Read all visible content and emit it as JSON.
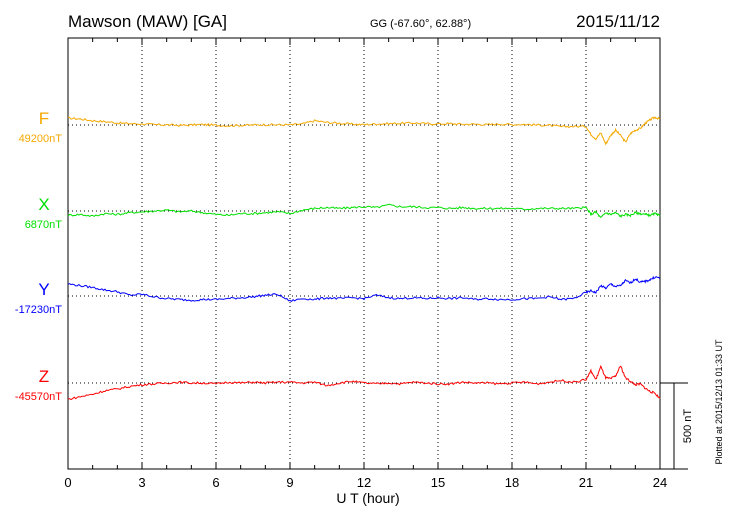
{
  "header": {
    "station": "Mawson (MAW)  [GA]",
    "coords": "GG (-67.60°,  62.88°)",
    "date": "2015/11/12"
  },
  "plotted_note": "Plotted at 2015/12/13 01:33 UT",
  "scale_label": "500 nT",
  "chart_data": {
    "type": "line",
    "title": "Mawson (MAW)  [GA]",
    "xlabel": "U T (hour)",
    "xlim": [
      0,
      24
    ],
    "xticks": [
      0,
      3,
      6,
      9,
      12,
      15,
      18,
      21,
      24
    ],
    "scale_bar_nT": 500,
    "grid": "dotted vertical at every 3 hours; dotted baseline per component",
    "legend": "left, component letter with baseline value",
    "colors": {
      "F": "#f5a800",
      "X": "#00e000",
      "Y": "#0000ff",
      "Z": "#ff0000"
    },
    "series": [
      {
        "name": "F",
        "baseline_label": "49200nT",
        "baseline_nT": 49200,
        "color": "#f5a800",
        "points": [
          [
            0,
            40
          ],
          [
            0.5,
            35
          ],
          [
            1,
            25
          ],
          [
            1.5,
            20
          ],
          [
            2,
            12
          ],
          [
            2.5,
            8
          ],
          [
            3,
            6
          ],
          [
            3.5,
            2
          ],
          [
            4,
            1
          ],
          [
            4.5,
            -2
          ],
          [
            5,
            0
          ],
          [
            5.5,
            3
          ],
          [
            6,
            -2
          ],
          [
            6.5,
            -4
          ],
          [
            7,
            -2
          ],
          [
            7.5,
            0
          ],
          [
            8,
            2
          ],
          [
            8.5,
            1
          ],
          [
            9,
            1
          ],
          [
            9.5,
            6
          ],
          [
            10,
            25
          ],
          [
            10.5,
            15
          ],
          [
            11,
            10
          ],
          [
            11.5,
            5
          ],
          [
            12,
            2
          ],
          [
            12.5,
            6
          ],
          [
            13,
            8
          ],
          [
            13.5,
            10
          ],
          [
            14,
            12
          ],
          [
            14.5,
            8
          ],
          [
            15,
            6
          ],
          [
            15.5,
            8
          ],
          [
            16,
            4
          ],
          [
            16.5,
            5
          ],
          [
            17,
            2
          ],
          [
            17.5,
            6
          ],
          [
            18,
            2
          ],
          [
            18.5,
            4
          ],
          [
            19,
            0
          ],
          [
            19.5,
            -2
          ],
          [
            20,
            -10
          ],
          [
            20.5,
            -8
          ],
          [
            21,
            -8
          ],
          [
            21.2,
            -55
          ],
          [
            21.4,
            -80
          ],
          [
            21.6,
            -45
          ],
          [
            21.8,
            -110
          ],
          [
            22,
            -60
          ],
          [
            22.2,
            -30
          ],
          [
            22.4,
            -60
          ],
          [
            22.6,
            -100
          ],
          [
            22.8,
            -50
          ],
          [
            23,
            -30
          ],
          [
            23.2,
            -20
          ],
          [
            23.4,
            10
          ],
          [
            23.6,
            30
          ],
          [
            23.8,
            45
          ],
          [
            24,
            35
          ]
        ]
      },
      {
        "name": "X",
        "baseline_label": "6870nT",
        "baseline_nT": 6870,
        "color": "#00e000",
        "points": [
          [
            0,
            -25
          ],
          [
            0.5,
            -20
          ],
          [
            1,
            -30
          ],
          [
            1.5,
            -15
          ],
          [
            2,
            -20
          ],
          [
            2.5,
            -10
          ],
          [
            3,
            -5
          ],
          [
            3.5,
            0
          ],
          [
            4,
            5
          ],
          [
            4.5,
            -5
          ],
          [
            5,
            0
          ],
          [
            5.5,
            -10
          ],
          [
            6,
            -20
          ],
          [
            6.5,
            -25
          ],
          [
            7,
            -15
          ],
          [
            7.5,
            -15
          ],
          [
            8,
            -10
          ],
          [
            8.5,
            -5
          ],
          [
            9,
            -15
          ],
          [
            9.5,
            5
          ],
          [
            10,
            15
          ],
          [
            10.5,
            20
          ],
          [
            11,
            15
          ],
          [
            11.5,
            20
          ],
          [
            12,
            25
          ],
          [
            12.5,
            20
          ],
          [
            13,
            35
          ],
          [
            13.5,
            25
          ],
          [
            14,
            25
          ],
          [
            14.5,
            20
          ],
          [
            15,
            20
          ],
          [
            15.5,
            15
          ],
          [
            16,
            20
          ],
          [
            16.5,
            15
          ],
          [
            17,
            15
          ],
          [
            17.5,
            15
          ],
          [
            18,
            15
          ],
          [
            18.5,
            10
          ],
          [
            19,
            15
          ],
          [
            19.5,
            15
          ],
          [
            20,
            15
          ],
          [
            20.5,
            15
          ],
          [
            21,
            20
          ],
          [
            21.2,
            -20
          ],
          [
            21.4,
            -5
          ],
          [
            21.6,
            -40
          ],
          [
            21.8,
            -10
          ],
          [
            22,
            -20
          ],
          [
            22.2,
            -10
          ],
          [
            22.4,
            -30
          ],
          [
            22.6,
            -20
          ],
          [
            22.8,
            -25
          ],
          [
            23,
            -10
          ],
          [
            23.2,
            -15
          ],
          [
            23.4,
            -20
          ],
          [
            23.6,
            -25
          ],
          [
            23.8,
            -15
          ],
          [
            24,
            -30
          ]
        ]
      },
      {
        "name": "Y",
        "baseline_label": "-17230nT",
        "baseline_nT": -17230,
        "color": "#0000ff",
        "points": [
          [
            0,
            70
          ],
          [
            0.5,
            60
          ],
          [
            1,
            50
          ],
          [
            1.5,
            35
          ],
          [
            2,
            25
          ],
          [
            2.5,
            5
          ],
          [
            3,
            10
          ],
          [
            3.5,
            -5
          ],
          [
            4,
            -15
          ],
          [
            4.5,
            -20
          ],
          [
            5,
            -25
          ],
          [
            5.5,
            -20
          ],
          [
            6,
            -20
          ],
          [
            6.5,
            -15
          ],
          [
            7,
            -10
          ],
          [
            7.5,
            -5
          ],
          [
            8,
            5
          ],
          [
            8.5,
            10
          ],
          [
            9,
            -30
          ],
          [
            9.5,
            -15
          ],
          [
            10,
            -20
          ],
          [
            10.5,
            -10
          ],
          [
            11,
            -15
          ],
          [
            11.5,
            -10
          ],
          [
            12,
            -15
          ],
          [
            12.5,
            5
          ],
          [
            13,
            -10
          ],
          [
            13.5,
            -15
          ],
          [
            14,
            -10
          ],
          [
            14.5,
            -15
          ],
          [
            15,
            -10
          ],
          [
            15.5,
            -15
          ],
          [
            16,
            -10
          ],
          [
            16.5,
            -20
          ],
          [
            17,
            -15
          ],
          [
            17.5,
            -20
          ],
          [
            18,
            -20
          ],
          [
            18.5,
            -15
          ],
          [
            19,
            -15
          ],
          [
            19.5,
            -5
          ],
          [
            20,
            -20
          ],
          [
            20.5,
            -15
          ],
          [
            21,
            20
          ],
          [
            21.2,
            30
          ],
          [
            21.4,
            20
          ],
          [
            21.6,
            60
          ],
          [
            21.8,
            45
          ],
          [
            22,
            70
          ],
          [
            22.2,
            55
          ],
          [
            22.4,
            60
          ],
          [
            22.6,
            90
          ],
          [
            22.8,
            75
          ],
          [
            23,
            100
          ],
          [
            23.2,
            80
          ],
          [
            23.4,
            85
          ],
          [
            23.6,
            95
          ],
          [
            23.8,
            110
          ],
          [
            24,
            105
          ]
        ]
      },
      {
        "name": "Z",
        "baseline_label": "-45570nT",
        "baseline_nT": -45570,
        "color": "#ff0000",
        "points": [
          [
            0,
            -95
          ],
          [
            0.5,
            -80
          ],
          [
            1,
            -65
          ],
          [
            1.5,
            -45
          ],
          [
            2,
            -35
          ],
          [
            2.5,
            -20
          ],
          [
            3,
            -10
          ],
          [
            3.5,
            -5
          ],
          [
            4,
            0
          ],
          [
            4.5,
            5
          ],
          [
            5,
            0
          ],
          [
            5.5,
            0
          ],
          [
            6,
            -5
          ],
          [
            6.5,
            5
          ],
          [
            7,
            0
          ],
          [
            7.5,
            5
          ],
          [
            8,
            0
          ],
          [
            8.5,
            5
          ],
          [
            9,
            5
          ],
          [
            9.5,
            0
          ],
          [
            10,
            5
          ],
          [
            10.5,
            -15
          ],
          [
            11,
            0
          ],
          [
            11.5,
            10
          ],
          [
            12,
            0
          ],
          [
            12.5,
            -5
          ],
          [
            13,
            0
          ],
          [
            13.5,
            -5
          ],
          [
            14,
            5
          ],
          [
            14.5,
            0
          ],
          [
            15,
            -5
          ],
          [
            15.5,
            -5
          ],
          [
            16,
            5
          ],
          [
            16.5,
            0
          ],
          [
            17,
            0
          ],
          [
            17.5,
            -5
          ],
          [
            18,
            0
          ],
          [
            18.5,
            5
          ],
          [
            19,
            -5
          ],
          [
            19.5,
            5
          ],
          [
            20,
            15
          ],
          [
            20.5,
            5
          ],
          [
            21,
            20
          ],
          [
            21.2,
            70
          ],
          [
            21.4,
            20
          ],
          [
            21.6,
            95
          ],
          [
            21.8,
            30
          ],
          [
            22,
            25
          ],
          [
            22.2,
            40
          ],
          [
            22.4,
            100
          ],
          [
            22.6,
            30
          ],
          [
            22.8,
            10
          ],
          [
            23,
            -10
          ],
          [
            23.2,
            -5
          ],
          [
            23.4,
            -30
          ],
          [
            23.6,
            -50
          ],
          [
            23.8,
            -60
          ],
          [
            24,
            -90
          ]
        ]
      }
    ]
  }
}
